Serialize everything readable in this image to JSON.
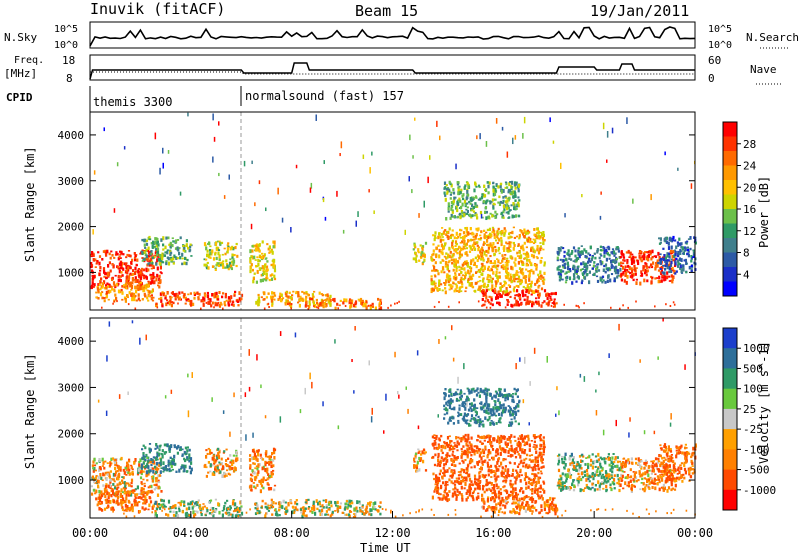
{
  "header": {
    "station": "Inuvik (fitACF)",
    "beam": "Beam 15",
    "date": "19/Jan/2011"
  },
  "strips": {
    "nsky": {
      "label": "N.Sky",
      "ticks": [
        "10^5",
        "10^0"
      ],
      "right_ticks": [
        "10^5",
        "10^0"
      ],
      "right_label": "N.Search"
    },
    "freq": {
      "label": "Freq.",
      "unit": "[MHz]",
      "ticks": [
        "18",
        "8"
      ],
      "right_ticks": [
        "60",
        "0"
      ],
      "right_label": "Nave"
    },
    "cpid": {
      "label": "CPID",
      "programs": [
        "themis 3300",
        "normalsound (fast) 157"
      ]
    }
  },
  "axes": {
    "ylabel": "Slant Range [km]",
    "xlabel": "Time UT",
    "x_ticks": [
      "00:00",
      "04:00",
      "08:00",
      "12:00",
      "16:00",
      "20:00",
      "00:00"
    ]
  },
  "colorbars": {
    "power": {
      "label": "Power [dB]",
      "tick_labels": [
        "28",
        "24",
        "20",
        "16",
        "12",
        "8",
        "4"
      ],
      "colors": [
        "#ff0000",
        "#ff3300",
        "#ff6a00",
        "#ff9900",
        "#ffc000",
        "#cdd400",
        "#6cc04a",
        "#2f9a66",
        "#3f7f8c",
        "#2c5aa6",
        "#1a2fc8",
        "#0000ff"
      ]
    },
    "velocity": {
      "label": "Velocity [m s^-1]",
      "tick_labels": [
        "1000",
        "500",
        "100",
        "25",
        "-25",
        "-100",
        "-500",
        "-1000"
      ],
      "colors": [
        "#1c3fcc",
        "#2e6f9a",
        "#2f9a66",
        "#69c93d",
        "#c8c8c8",
        "#ffa000",
        "#ff8000",
        "#ff4a00",
        "#ff0000"
      ]
    }
  },
  "chart_data": [
    {
      "type": "heatmap",
      "title": "Power",
      "xlabel": "Time UT",
      "ylabel": "Slant Range [km]",
      "xlim": [
        0,
        24
      ],
      "ylim": [
        180,
        4500
      ],
      "colorbar": "Power [dB]",
      "clim": [
        0,
        30
      ],
      "regions": [
        {
          "t": [
            0.0,
            2.8
          ],
          "r": [
            700,
            1500
          ],
          "value": 28
        },
        {
          "t": [
            0.2,
            2.5
          ],
          "r": [
            400,
            800
          ],
          "value": 22
        },
        {
          "t": [
            2.5,
            6.0
          ],
          "r": [
            300,
            600
          ],
          "value": 26
        },
        {
          "t": [
            2.0,
            4.0
          ],
          "r": [
            1200,
            1800
          ],
          "value": 12
        },
        {
          "t": [
            4.5,
            5.8
          ],
          "r": [
            1100,
            1700
          ],
          "value": 16
        },
        {
          "t": [
            6.3,
            7.3
          ],
          "r": [
            800,
            1700
          ],
          "value": 18
        },
        {
          "t": [
            6.5,
            9.5
          ],
          "r": [
            300,
            600
          ],
          "value": 20
        },
        {
          "t": [
            8.5,
            11.5
          ],
          "r": [
            250,
            450
          ],
          "value": 24
        },
        {
          "t": [
            12.8,
            13.3
          ],
          "r": [
            1200,
            1700
          ],
          "value": 18
        },
        {
          "t": [
            13.5,
            18.0
          ],
          "r": [
            600,
            2000
          ],
          "value": 20
        },
        {
          "t": [
            15.5,
            18.5
          ],
          "r": [
            300,
            650
          ],
          "value": 29
        },
        {
          "t": [
            14.0,
            17.0
          ],
          "r": [
            2200,
            3000
          ],
          "value": 12
        },
        {
          "t": [
            18.5,
            21.0
          ],
          "r": [
            800,
            1600
          ],
          "value": 8
        },
        {
          "t": [
            21.0,
            23.2
          ],
          "r": [
            800,
            1500
          ],
          "value": 28
        },
        {
          "t": [
            22.5,
            24.0
          ],
          "r": [
            1000,
            1800
          ],
          "value": 6
        }
      ]
    },
    {
      "type": "heatmap",
      "title": "Velocity",
      "xlabel": "Time UT",
      "ylabel": "Slant Range [km]",
      "xlim": [
        0,
        24
      ],
      "ylim": [
        180,
        4500
      ],
      "colorbar": "Velocity [m s^-1]",
      "clim": [
        -1000,
        1000
      ],
      "regions": [
        {
          "t": [
            0.0,
            2.8
          ],
          "r": [
            700,
            1500
          ],
          "value": -150
        },
        {
          "t": [
            0.2,
            2.5
          ],
          "r": [
            350,
            800
          ],
          "value": -300
        },
        {
          "t": [
            2.5,
            6.0
          ],
          "r": [
            250,
            600
          ],
          "value": 60
        },
        {
          "t": [
            2.0,
            4.0
          ],
          "r": [
            1200,
            1800
          ],
          "value": 300
        },
        {
          "t": [
            4.5,
            5.8
          ],
          "r": [
            1100,
            1700
          ],
          "value": -150
        },
        {
          "t": [
            6.3,
            7.3
          ],
          "r": [
            800,
            1700
          ],
          "value": -200
        },
        {
          "t": [
            6.5,
            11.5
          ],
          "r": [
            250,
            600
          ],
          "value": 0
        },
        {
          "t": [
            12.8,
            13.3
          ],
          "r": [
            1200,
            1700
          ],
          "value": -200
        },
        {
          "t": [
            13.5,
            18.0
          ],
          "r": [
            600,
            2000
          ],
          "value": -400
        },
        {
          "t": [
            15.5,
            18.5
          ],
          "r": [
            300,
            650
          ],
          "value": -250
        },
        {
          "t": [
            14.0,
            17.0
          ],
          "r": [
            2200,
            3000
          ],
          "value": 400
        },
        {
          "t": [
            18.5,
            21.0
          ],
          "r": [
            800,
            1600
          ],
          "value": 60
        },
        {
          "t": [
            21.0,
            23.2
          ],
          "r": [
            800,
            1500
          ],
          "value": -200
        },
        {
          "t": [
            22.5,
            24.0
          ],
          "r": [
            1000,
            1800
          ],
          "value": -300
        }
      ]
    }
  ]
}
